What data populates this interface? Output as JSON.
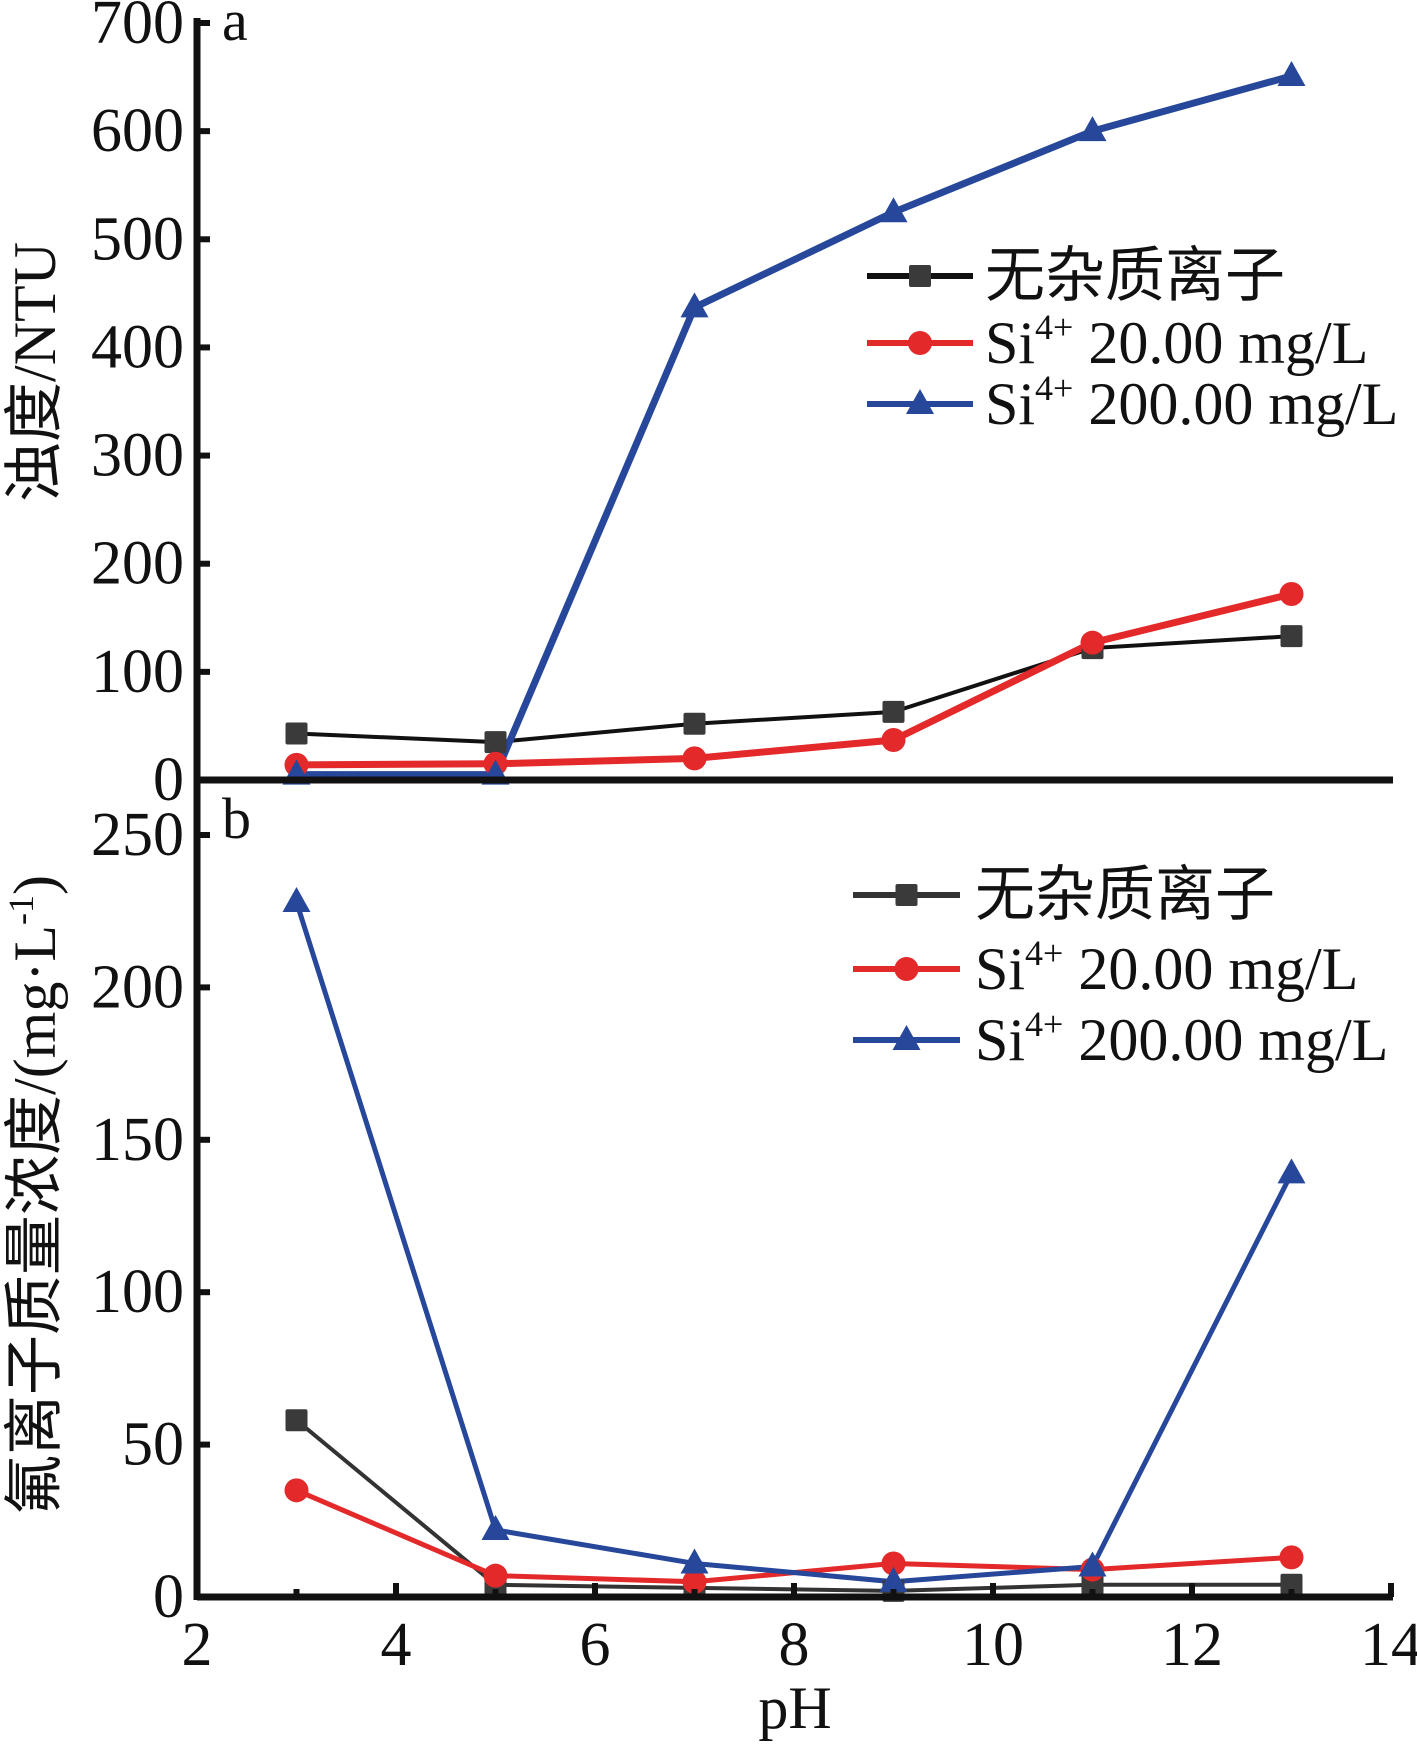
{
  "chart_data": [
    {
      "id": "a",
      "type": "line",
      "panel_label": "a",
      "title": "",
      "xlabel": "",
      "ylabel": "浊度/NTU",
      "xlim": [
        2,
        14
      ],
      "ylim": [
        0,
        700
      ],
      "yticks": [
        0,
        100,
        200,
        300,
        400,
        500,
        600,
        700
      ],
      "grid": false,
      "legend_position": "top-right",
      "x": [
        3,
        5,
        7,
        9,
        11,
        13
      ],
      "series": [
        {
          "name": "无杂质离子",
          "marker": "square",
          "color": "#3a3a3a",
          "line_color": "#111111",
          "values": [
            43,
            35,
            52,
            63,
            122,
            133
          ]
        },
        {
          "name_main": "Si",
          "name_sup": "4+",
          "name_rest": " 20.00 mg/L",
          "name": "Si4+ 20.00 mg/L",
          "marker": "circle",
          "color": "#e3292a",
          "line_color": "#e3292a",
          "values": [
            14,
            15,
            20,
            37,
            127,
            172
          ]
        },
        {
          "name_main": "Si",
          "name_sup": "4+",
          "name_rest": " 200.00 mg/L",
          "name": "Si4+ 200.00 mg/L",
          "marker": "triangle",
          "color": "#26479a",
          "line_color": "#26479a",
          "values": [
            5,
            5,
            437,
            525,
            600,
            651
          ]
        }
      ]
    },
    {
      "id": "b",
      "type": "line",
      "panel_label": "b",
      "title": "",
      "xlabel": "pH",
      "ylabel": "氟离子质量浓度/(mg·L-1)",
      "ylabel_main": "氟离子质量浓度/(mg·L",
      "ylabel_sup": "-1",
      "ylabel_end": ")",
      "xlim": [
        2,
        14
      ],
      "ylim": [
        0,
        250
      ],
      "xticks": [
        2,
        4,
        6,
        8,
        10,
        12,
        14
      ],
      "yticks": [
        0,
        50,
        100,
        150,
        200,
        250
      ],
      "grid": false,
      "legend_position": "top-right",
      "x": [
        3,
        5,
        7,
        9,
        11,
        13
      ],
      "series": [
        {
          "name": "无杂质离子",
          "marker": "square",
          "color": "#3a3a3a",
          "line_color": "#333333",
          "values": [
            58,
            4,
            3,
            2,
            4,
            4
          ]
        },
        {
          "name_main": "Si",
          "name_sup": "4+",
          "name_rest": " 20.00 mg/L",
          "name": "Si4+ 20.00 mg/L",
          "marker": "circle",
          "color": "#e3292a",
          "line_color": "#e3292a",
          "values": [
            35,
            7,
            5,
            11,
            9,
            13
          ]
        },
        {
          "name_main": "Si",
          "name_sup": "4+",
          "name_rest": " 200.00 mg/L",
          "name": "Si4+ 200.00 mg/L",
          "marker": "triangle",
          "color": "#26479a",
          "line_color": "#26479a",
          "values": [
            228,
            22,
            11,
            5,
            10,
            139
          ]
        }
      ]
    }
  ]
}
